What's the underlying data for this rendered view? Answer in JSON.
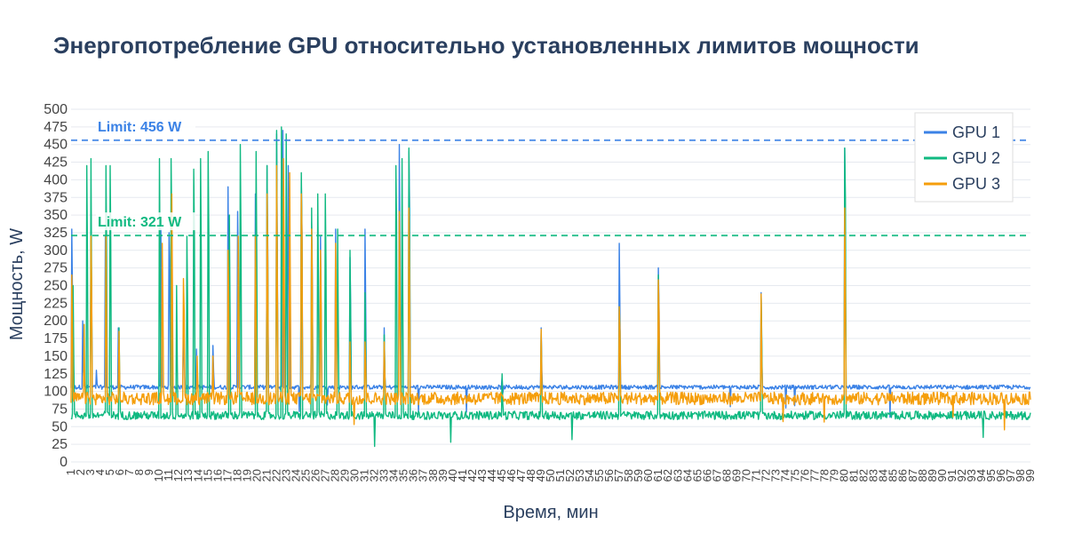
{
  "colors": {
    "gpu1": "#3b82e6",
    "gpu2": "#10b981",
    "gpu3": "#f59e0b",
    "text": "#2a3f5f",
    "grid": "#e6e9ef",
    "background": "#ffffff"
  },
  "chart_data": {
    "type": "line",
    "title": "Энергопотребление GPU относительно установленных лимитов мощности",
    "xlabel": "Время, мин",
    "ylabel": "Мощность, W",
    "ylim": [
      0,
      500
    ],
    "y_ticks": [
      0,
      25,
      50,
      75,
      100,
      125,
      150,
      175,
      200,
      225,
      250,
      275,
      300,
      325,
      350,
      375,
      400,
      425,
      450,
      475,
      500
    ],
    "x_ticks": [
      "1",
      "2",
      "3",
      "4",
      "5",
      "6",
      "7",
      "8",
      "9",
      "10",
      "11",
      "12",
      "13",
      "14",
      "15",
      "16",
      "17",
      "18",
      "19",
      "20",
      "21",
      "22",
      "23",
      "24",
      "25",
      "26",
      "27",
      "28",
      "29",
      "30",
      "31",
      "32",
      "33",
      "34",
      "35",
      "36",
      "37",
      "38",
      "39",
      "40",
      "41",
      "42",
      "43",
      "44",
      "45",
      "46",
      "47",
      "48",
      "49",
      "50",
      "51",
      "52",
      "53",
      "54",
      "55",
      "56",
      "57",
      "58",
      "59",
      "60",
      "61",
      "62",
      "63",
      "64",
      "65",
      "66",
      "67",
      "68",
      "69",
      "70",
      "71",
      "72",
      "73",
      "74",
      "75",
      "76",
      "77",
      "78",
      "79",
      "80",
      "81",
      "82",
      "83",
      "84",
      "85",
      "86",
      "87",
      "88",
      "89",
      "90",
      "91",
      "92",
      "93",
      "94",
      "95",
      "96",
      "97",
      "98",
      "99"
    ],
    "grid": true,
    "legend_position": "top-right",
    "series": [
      {
        "name": "GPU 1",
        "color_key": "gpu1",
        "baseline": 106,
        "noise": 3,
        "spikes": [
          [
            1.1,
            330
          ],
          [
            2.2,
            200
          ],
          [
            3.0,
            310
          ],
          [
            3.6,
            130
          ],
          [
            4.5,
            320
          ],
          [
            5.8,
            190
          ],
          [
            10.2,
            330
          ],
          [
            11.0,
            325
          ],
          [
            12.5,
            200
          ],
          [
            13.8,
            160
          ],
          [
            15.5,
            165
          ],
          [
            17.0,
            390
          ],
          [
            18.0,
            355
          ],
          [
            19.8,
            380
          ],
          [
            21.0,
            420
          ],
          [
            22.0,
            465
          ],
          [
            22.6,
            470
          ],
          [
            23.2,
            420
          ],
          [
            24.5,
            400
          ],
          [
            25.6,
            340
          ],
          [
            26.5,
            320
          ],
          [
            28.0,
            330
          ],
          [
            29.5,
            290
          ],
          [
            31.0,
            330
          ],
          [
            33.0,
            190
          ],
          [
            34.5,
            450
          ],
          [
            35.5,
            440
          ],
          [
            45.0,
            120
          ],
          [
            49.0,
            190
          ],
          [
            57.0,
            310
          ],
          [
            61.0,
            275
          ],
          [
            71.5,
            240
          ],
          [
            80.0,
            445
          ]
        ]
      },
      {
        "name": "GPU 2",
        "color_key": "gpu2",
        "baseline": 66,
        "noise": 6,
        "spikes": [
          [
            1.2,
            250
          ],
          [
            2.6,
            420
          ],
          [
            3.0,
            430
          ],
          [
            4.6,
            420
          ],
          [
            5.0,
            420
          ],
          [
            5.9,
            190
          ],
          [
            10.0,
            430
          ],
          [
            11.2,
            430
          ],
          [
            11.8,
            250
          ],
          [
            12.8,
            320
          ],
          [
            13.5,
            415
          ],
          [
            14.2,
            430
          ],
          [
            15.0,
            440
          ],
          [
            17.2,
            350
          ],
          [
            18.3,
            450
          ],
          [
            19.9,
            440
          ],
          [
            21.0,
            420
          ],
          [
            22.0,
            470
          ],
          [
            22.5,
            475
          ],
          [
            23.0,
            465
          ],
          [
            24.5,
            410
          ],
          [
            25.6,
            360
          ],
          [
            26.2,
            380
          ],
          [
            27.0,
            380
          ],
          [
            28.2,
            330
          ],
          [
            29.5,
            300
          ],
          [
            31.0,
            240
          ],
          [
            33.0,
            180
          ],
          [
            34.2,
            420
          ],
          [
            34.8,
            430
          ],
          [
            35.5,
            445
          ],
          [
            45.0,
            125
          ],
          [
            49.0,
            185
          ],
          [
            57.0,
            220
          ],
          [
            61.0,
            265
          ],
          [
            71.5,
            235
          ],
          [
            80.0,
            445
          ]
        ]
      },
      {
        "name": "GPU 3",
        "color_key": "gpu3",
        "baseline": 90,
        "noise": 9,
        "spikes": [
          [
            1.1,
            265
          ],
          [
            2.3,
            195
          ],
          [
            3.0,
            320
          ],
          [
            4.6,
            320
          ],
          [
            5.9,
            185
          ],
          [
            10.3,
            310
          ],
          [
            11.3,
            380
          ],
          [
            12.5,
            260
          ],
          [
            13.9,
            150
          ],
          [
            15.5,
            150
          ],
          [
            17.0,
            300
          ],
          [
            18.1,
            320
          ],
          [
            19.8,
            320
          ],
          [
            21.0,
            380
          ],
          [
            22.0,
            420
          ],
          [
            22.7,
            430
          ],
          [
            23.3,
            410
          ],
          [
            24.5,
            380
          ],
          [
            25.6,
            330
          ],
          [
            26.5,
            300
          ],
          [
            28.0,
            310
          ],
          [
            29.5,
            170
          ],
          [
            31.0,
            170
          ],
          [
            33.0,
            170
          ],
          [
            34.5,
            355
          ],
          [
            35.5,
            360
          ],
          [
            49.0,
            188
          ],
          [
            57.0,
            220
          ],
          [
            61.0,
            258
          ],
          [
            71.5,
            238
          ],
          [
            80.0,
            360
          ]
        ]
      }
    ],
    "annotations": [
      {
        "text": "Limit: 456 W",
        "value": 456,
        "color_key": "gpu1"
      },
      {
        "text": "Limit: 321 W",
        "value": 321,
        "color_key": "gpu2"
      }
    ]
  }
}
